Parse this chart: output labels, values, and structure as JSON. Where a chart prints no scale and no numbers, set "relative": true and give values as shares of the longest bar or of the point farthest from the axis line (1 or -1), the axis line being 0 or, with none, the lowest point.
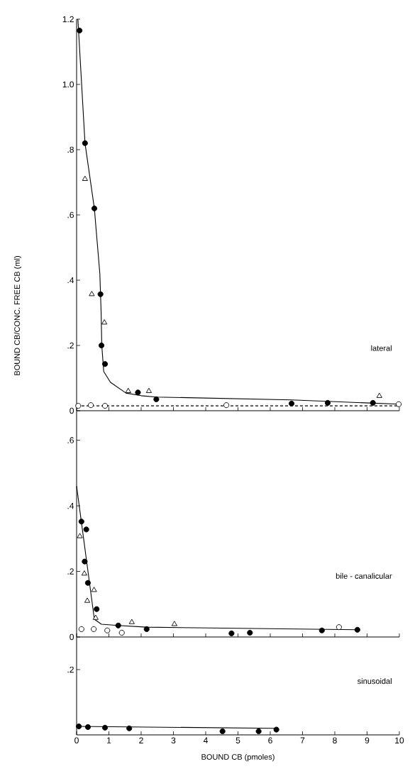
{
  "chart_data": [
    {
      "type": "scatter",
      "xlim": [
        0,
        10
      ],
      "xticks": [
        0,
        1,
        2,
        3,
        4,
        5,
        6,
        7,
        8,
        9,
        10
      ],
      "ylim": [
        0,
        1.2
      ],
      "tick_labels": "y",
      "yticks": [
        0,
        {
          "value": 0.2,
          "label": ".2"
        },
        {
          "value": 0.4,
          "label": ".4"
        },
        {
          "value": 0.6,
          "label": ".6"
        },
        {
          "value": 0.8,
          "label": ".8"
        },
        {
          "value": 1.0,
          "label": "1.0"
        },
        1.2
      ],
      "annotations": [
        "lateral"
      ],
      "series": [
        {
          "marker": "circle",
          "color": "#000000",
          "x": [
            0.09,
            0.26,
            0.55,
            0.74,
            0.77,
            0.88,
            1.9,
            2.47,
            6.66,
            7.78,
            9.18
          ],
          "values": [
            1.165,
            0.82,
            0.62,
            0.357,
            0.2,
            0.143,
            0.056,
            0.035,
            0.022,
            0.024,
            0.024
          ]
        },
        {
          "marker": "triangle",
          "color": "#ffffff",
          "x": [
            0.26,
            0.47,
            0.86,
            1.6,
            2.24,
            9.38
          ],
          "values": [
            0.71,
            0.357,
            0.27,
            0.06,
            0.06,
            0.045
          ]
        },
        {
          "marker": "circle",
          "color": "#ffffff",
          "x": [
            0.05,
            0.44,
            0.88,
            4.64,
            9.98
          ],
          "values": [
            0.015,
            0.017,
            0.015,
            0.017,
            0.02
          ]
        },
        {
          "type": "line",
          "marker": "none",
          "line_style": "solid",
          "color": "#000000",
          "x": [
            0.04,
            0.26,
            0.55,
            0.72,
            0.76,
            0.78,
            0.84,
            1.05,
            1.53,
            2.0,
            2.47,
            6.66,
            10
          ],
          "values": [
            1.2,
            0.82,
            0.62,
            0.42,
            0.3,
            0.2,
            0.12,
            0.087,
            0.054,
            0.046,
            0.042,
            0.033,
            0.02
          ]
        },
        {
          "type": "line",
          "marker": "none",
          "line_style": "dashed",
          "color": "#000000",
          "x": [
            0,
            10
          ],
          "values": [
            0.015,
            0.015
          ]
        }
      ]
    },
    {
      "type": "scatter",
      "xlim": [
        0,
        10
      ],
      "xticks": [
        0,
        1,
        2,
        3,
        4,
        5,
        6,
        7,
        8,
        9,
        10
      ],
      "ylim": [
        0,
        0.69
      ],
      "tick_labels": "y",
      "yticks": [
        0,
        {
          "value": 0.2,
          "label": ".2"
        },
        {
          "value": 0.4,
          "label": ".4"
        },
        {
          "value": 0.6,
          "label": ".6"
        }
      ],
      "ylabel": "BOUND CB/CONC. FREE CB (ml)",
      "annotations": [
        "bile - canalicular"
      ],
      "series": [
        {
          "marker": "circle",
          "color": "#000000",
          "x": [
            0.15,
            0.3,
            0.25,
            0.35,
            0.62,
            1.29,
            2.17,
            4.8,
            5.37,
            7.6,
            8.7
          ],
          "values": [
            0.352,
            0.328,
            0.23,
            0.165,
            0.085,
            0.035,
            0.024,
            0.011,
            0.013,
            0.02,
            0.022
          ]
        },
        {
          "marker": "triangle",
          "color": "#ffffff",
          "x": [
            0.1,
            0.24,
            0.54,
            0.33,
            0.59,
            1.71,
            3.03
          ],
          "values": [
            0.307,
            0.193,
            0.143,
            0.11,
            0.058,
            0.045,
            0.039
          ]
        },
        {
          "marker": "circle",
          "color": "#ffffff",
          "x": [
            0.15,
            0.53,
            0.95,
            1.4,
            8.13
          ],
          "values": [
            0.024,
            0.024,
            0.02,
            0.013,
            0.03
          ]
        },
        {
          "type": "line",
          "marker": "none",
          "line_style": "solid",
          "color": "#000000",
          "x": [
            0,
            0.55,
            0.77,
            1.29,
            2.17,
            8.7
          ],
          "values": [
            0.46,
            0.054,
            0.039,
            0.035,
            0.03,
            0.022
          ]
        }
      ]
    },
    {
      "type": "scatter",
      "xlim": [
        0,
        10
      ],
      "xticks": [
        0,
        1,
        2,
        3,
        4,
        5,
        6,
        7,
        8,
        9,
        10
      ],
      "relative": true,
      "xlabel": "BOUND CB  (pmoles)",
      "annotations": [
        "sinusoidal",
        ".2"
      ],
      "series": [
        {
          "marker": "circle",
          "color": "#000000",
          "x": [
            0.07,
            0.35,
            0.88,
            1.63,
            4.52,
            5.64,
            6.19
          ],
          "values": [
            1,
            0.92,
            0.85,
            0.77,
            0.42,
            0.42,
            0.62
          ]
        },
        {
          "type": "line",
          "marker": "none",
          "line_style": "solid",
          "color": "#000000",
          "x": [
            0,
            6.2
          ],
          "values": [
            1,
            0.77
          ]
        }
      ]
    }
  ]
}
